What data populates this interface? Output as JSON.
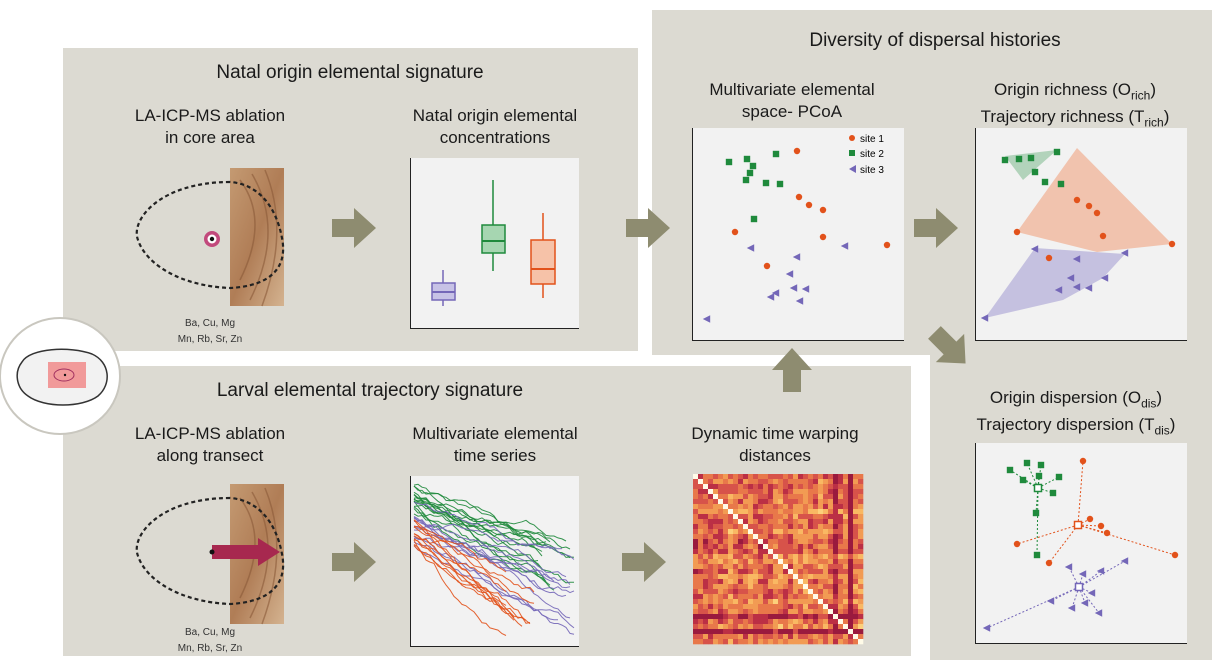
{
  "panels": {
    "natal_title": "Natal origin elemental signature",
    "larval_title": "Larval elemental trajectory signature",
    "diversity_title": "Diversity of dispersal histories"
  },
  "natal": {
    "ablation_title": "LA-ICP-MS ablation\nin core area",
    "concentrations_title": "Natal origin elemental\nconcentrations",
    "elements_line1": "Ba,  Cu,  Mg",
    "elements_line2": "Mn,  Rb,  Sr,  Zn"
  },
  "larval": {
    "ablation_title": "LA-ICP-MS ablation\nalong transect",
    "timeseries_title": "Multivariate elemental\ntime series",
    "dtw_title": "Dynamic time warping\ndistances",
    "elements_line1": "Ba,  Cu,  Mg",
    "elements_line2": "Mn,  Rb,  Sr,  Zn"
  },
  "diversity": {
    "pcoa_title": "Multivariate elemental\nspace- PCoA",
    "richness_line1_pre": "Origin richness (O",
    "richness_line1_sub": "rich",
    "richness_line2_pre": "Trajectory richness (T",
    "richness_line2_sub": "rich",
    "dispersion_line1_pre": "Origin dispersion (O",
    "dispersion_line1_sub": "dis",
    "dispersion_line2_pre": "Trajectory dispersion (T",
    "dispersion_line2_sub": "dis",
    "legend": [
      "site 1",
      "site 2",
      "site 3"
    ]
  },
  "colors": {
    "site1": "#e2521b",
    "site2": "#1f8a3c",
    "site3": "#7467b8",
    "panel": "#dcdad2",
    "arrow": "#8e8c70"
  }
}
